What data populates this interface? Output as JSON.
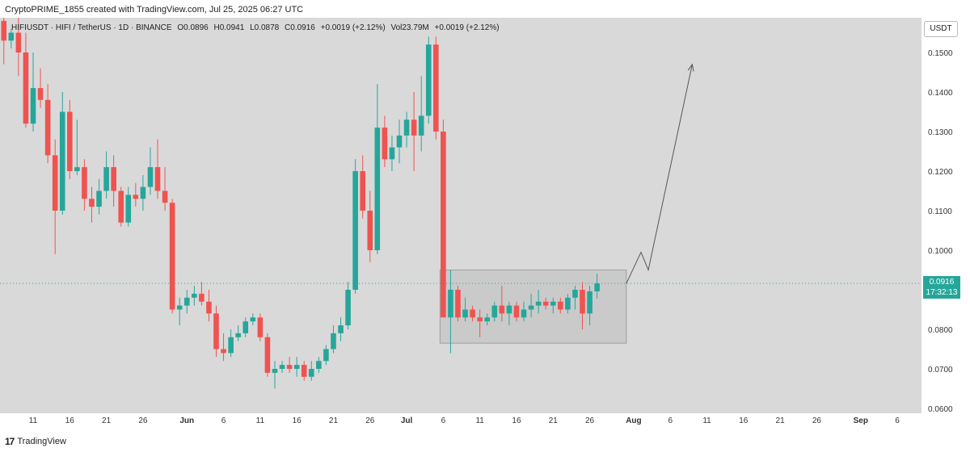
{
  "credit": "CryptoPRIME_1855 created with TradingView.com, Jul 25, 2025 06:27 UTC",
  "legend": {
    "symbol": "HIFIUSDT · HIFI / TetherUS · 1D · BINANCE",
    "open": "O0.0896",
    "high": "H0.0941",
    "low": "L0.0878",
    "close": "C0.0916",
    "change": "+0.0019 (+2.12%)",
    "volume": "Vol23.79M",
    "vol_change": "+0.0019 (+2.12%)"
  },
  "unit": "USDT",
  "last_price": {
    "value": "0.0916",
    "countdown": "17:32:13"
  },
  "footer": "TradingView",
  "colors": {
    "up": "#26a69a",
    "down": "#ef5350",
    "box": "#bdbdbd",
    "plot_bg": "#d9d9d9"
  },
  "chart_data": {
    "type": "candlestick",
    "ylim": [
      0.06,
      0.155
    ],
    "y_ticks": [
      "0.0600",
      "0.0700",
      "0.0800",
      "0.0900",
      "0.1000",
      "0.1100",
      "0.1200",
      "0.1300",
      "0.1400",
      "0.1500"
    ],
    "x_ticks": [
      {
        "label": "11",
        "day": 11
      },
      {
        "label": "16",
        "day": 16
      },
      {
        "label": "21",
        "day": 21
      },
      {
        "label": "26",
        "day": 26
      },
      {
        "label": "Jun",
        "day": 32
      },
      {
        "label": "6",
        "day": 37
      },
      {
        "label": "11",
        "day": 42
      },
      {
        "label": "16",
        "day": 47
      },
      {
        "label": "21",
        "day": 52
      },
      {
        "label": "26",
        "day": 57
      },
      {
        "label": "Jul",
        "day": 62
      },
      {
        "label": "6",
        "day": 67
      },
      {
        "label": "11",
        "day": 72
      },
      {
        "label": "16",
        "day": 77
      },
      {
        "label": "21",
        "day": 82
      },
      {
        "label": "26",
        "day": 87
      },
      {
        "label": "Aug",
        "day": 93
      },
      {
        "label": "6",
        "day": 98
      },
      {
        "label": "11",
        "day": 103
      },
      {
        "label": "16",
        "day": 108
      },
      {
        "label": "21",
        "day": 113
      },
      {
        "label": "26",
        "day": 118
      },
      {
        "label": "Sep",
        "day": 124
      },
      {
        "label": "6",
        "day": 129
      }
    ],
    "candles": [
      [
        7,
        0.158,
        0.16,
        0.147,
        0.153
      ],
      [
        8,
        0.153,
        0.156,
        0.151,
        0.155
      ],
      [
        9,
        0.155,
        0.16,
        0.144,
        0.15
      ],
      [
        10,
        0.15,
        0.155,
        0.131,
        0.132
      ],
      [
        11,
        0.132,
        0.15,
        0.13,
        0.141
      ],
      [
        12,
        0.141,
        0.146,
        0.136,
        0.138
      ],
      [
        13,
        0.138,
        0.142,
        0.122,
        0.124
      ],
      [
        14,
        0.124,
        0.128,
        0.099,
        0.11
      ],
      [
        15,
        0.11,
        0.14,
        0.109,
        0.135
      ],
      [
        16,
        0.135,
        0.138,
        0.118,
        0.12
      ],
      [
        17,
        0.12,
        0.133,
        0.119,
        0.121
      ],
      [
        18,
        0.121,
        0.123,
        0.11,
        0.113
      ],
      [
        19,
        0.113,
        0.116,
        0.107,
        0.111
      ],
      [
        20,
        0.111,
        0.118,
        0.109,
        0.115
      ],
      [
        21,
        0.115,
        0.125,
        0.113,
        0.121
      ],
      [
        22,
        0.121,
        0.124,
        0.111,
        0.115
      ],
      [
        23,
        0.115,
        0.116,
        0.106,
        0.107
      ],
      [
        24,
        0.107,
        0.116,
        0.106,
        0.114
      ],
      [
        25,
        0.114,
        0.117,
        0.111,
        0.113
      ],
      [
        26,
        0.113,
        0.119,
        0.11,
        0.116
      ],
      [
        27,
        0.116,
        0.126,
        0.114,
        0.121
      ],
      [
        28,
        0.121,
        0.128,
        0.113,
        0.115
      ],
      [
        29,
        0.115,
        0.121,
        0.11,
        0.112
      ],
      [
        30,
        0.112,
        0.113,
        0.084,
        0.085
      ],
      [
        31,
        0.085,
        0.088,
        0.081,
        0.086
      ],
      [
        32,
        0.086,
        0.09,
        0.084,
        0.088
      ],
      [
        33,
        0.088,
        0.091,
        0.086,
        0.089
      ],
      [
        34,
        0.089,
        0.092,
        0.086,
        0.087
      ],
      [
        35,
        0.087,
        0.09,
        0.082,
        0.084
      ],
      [
        36,
        0.084,
        0.086,
        0.073,
        0.075
      ],
      [
        37,
        0.075,
        0.079,
        0.072,
        0.074
      ],
      [
        38,
        0.074,
        0.08,
        0.073,
        0.078
      ],
      [
        39,
        0.078,
        0.081,
        0.077,
        0.079
      ],
      [
        40,
        0.079,
        0.083,
        0.078,
        0.082
      ],
      [
        41,
        0.082,
        0.084,
        0.081,
        0.083
      ],
      [
        42,
        0.083,
        0.084,
        0.077,
        0.078
      ],
      [
        43,
        0.078,
        0.079,
        0.068,
        0.069
      ],
      [
        44,
        0.069,
        0.072,
        0.065,
        0.07
      ],
      [
        45,
        0.07,
        0.072,
        0.069,
        0.071
      ],
      [
        46,
        0.071,
        0.073,
        0.069,
        0.07
      ],
      [
        47,
        0.07,
        0.073,
        0.068,
        0.071
      ],
      [
        48,
        0.071,
        0.072,
        0.067,
        0.068
      ],
      [
        49,
        0.068,
        0.072,
        0.067,
        0.07
      ],
      [
        50,
        0.07,
        0.073,
        0.069,
        0.072
      ],
      [
        51,
        0.072,
        0.076,
        0.071,
        0.075
      ],
      [
        52,
        0.075,
        0.081,
        0.074,
        0.079
      ],
      [
        53,
        0.079,
        0.083,
        0.077,
        0.081
      ],
      [
        54,
        0.081,
        0.092,
        0.08,
        0.09
      ],
      [
        55,
        0.09,
        0.123,
        0.089,
        0.12
      ],
      [
        56,
        0.12,
        0.124,
        0.108,
        0.11
      ],
      [
        57,
        0.11,
        0.115,
        0.097,
        0.1
      ],
      [
        58,
        0.1,
        0.142,
        0.099,
        0.131
      ],
      [
        59,
        0.131,
        0.134,
        0.121,
        0.123
      ],
      [
        60,
        0.123,
        0.129,
        0.12,
        0.126
      ],
      [
        61,
        0.126,
        0.133,
        0.122,
        0.129
      ],
      [
        62,
        0.129,
        0.135,
        0.126,
        0.133
      ],
      [
        63,
        0.133,
        0.14,
        0.12,
        0.129
      ],
      [
        64,
        0.129,
        0.144,
        0.125,
        0.134
      ],
      [
        65,
        0.134,
        0.154,
        0.132,
        0.152
      ],
      [
        66,
        0.152,
        0.154,
        0.128,
        0.13
      ],
      [
        67,
        0.13,
        0.133,
        0.083,
        0.083
      ],
      [
        68,
        0.083,
        0.095,
        0.074,
        0.09
      ],
      [
        69,
        0.09,
        0.091,
        0.082,
        0.083
      ],
      [
        70,
        0.083,
        0.088,
        0.082,
        0.085
      ],
      [
        71,
        0.085,
        0.086,
        0.082,
        0.083
      ],
      [
        72,
        0.083,
        0.085,
        0.078,
        0.082
      ],
      [
        73,
        0.082,
        0.084,
        0.081,
        0.083
      ],
      [
        74,
        0.083,
        0.087,
        0.082,
        0.086
      ],
      [
        75,
        0.086,
        0.091,
        0.082,
        0.084
      ],
      [
        76,
        0.084,
        0.087,
        0.081,
        0.086
      ],
      [
        77,
        0.086,
        0.087,
        0.082,
        0.083
      ],
      [
        78,
        0.083,
        0.087,
        0.082,
        0.085
      ],
      [
        79,
        0.085,
        0.089,
        0.083,
        0.086
      ],
      [
        80,
        0.086,
        0.09,
        0.084,
        0.087
      ],
      [
        81,
        0.087,
        0.088,
        0.085,
        0.086
      ],
      [
        82,
        0.086,
        0.088,
        0.084,
        0.087
      ],
      [
        83,
        0.087,
        0.088,
        0.084,
        0.085
      ],
      [
        84,
        0.085,
        0.089,
        0.084,
        0.088
      ],
      [
        85,
        0.088,
        0.091,
        0.085,
        0.09
      ],
      [
        86,
        0.09,
        0.092,
        0.08,
        0.084
      ],
      [
        87,
        0.084,
        0.091,
        0.081,
        0.0896
      ],
      [
        88,
        0.0896,
        0.0941,
        0.0878,
        0.0916
      ]
    ],
    "range_box": {
      "day_start": 67,
      "day_end": 92,
      "low": 0.0765,
      "high": 0.095
    },
    "projection_path": [
      [
        92,
        0.0916
      ],
      [
        94,
        0.0995
      ],
      [
        95,
        0.095
      ],
      [
        101,
        0.147
      ]
    ]
  }
}
